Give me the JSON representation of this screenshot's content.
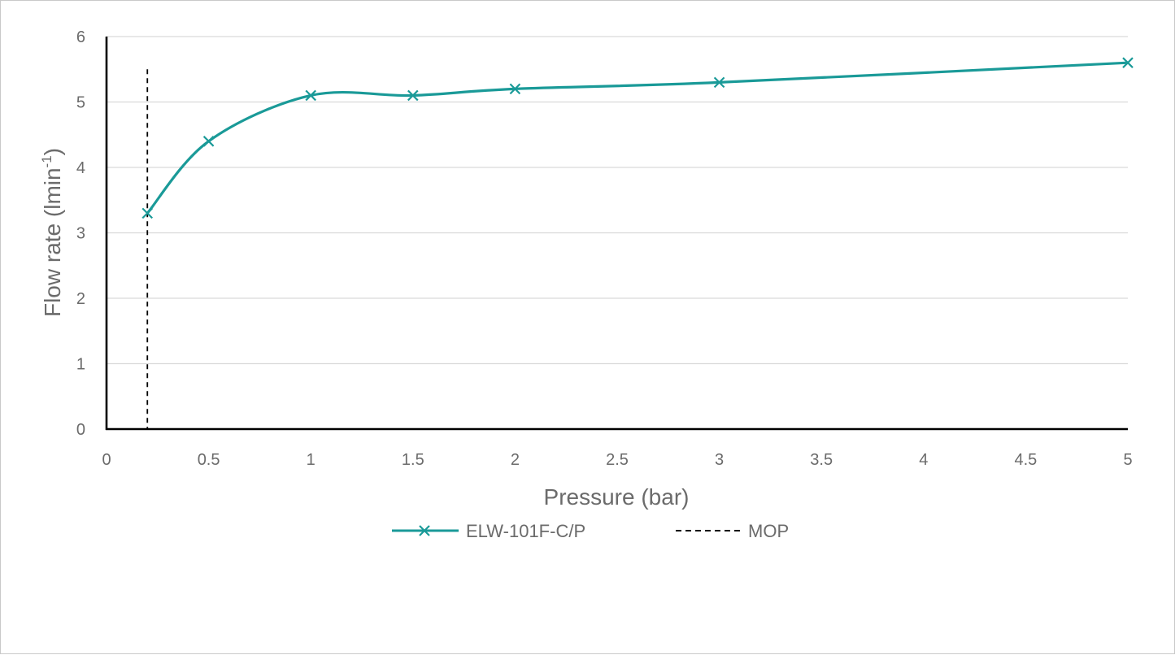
{
  "chart_data": {
    "type": "line",
    "title": "",
    "xlabel": "Pressure (bar)",
    "ylabel_main": "Flow rate (lmin",
    "ylabel_sup": "-1",
    "ylabel_close": ")",
    "xlim": [
      0,
      5
    ],
    "ylim": [
      0,
      6
    ],
    "x_ticks": [
      "0",
      "0.5",
      "1",
      "1.5",
      "2",
      "2.5",
      "3",
      "3.5",
      "4",
      "4.5",
      "5"
    ],
    "y_ticks": [
      "0",
      "1",
      "2",
      "3",
      "4",
      "5",
      "6"
    ],
    "grid": true,
    "legend_position": "bottom",
    "series": [
      {
        "name": "ELW-101F-C/P",
        "color": "#1a9a98",
        "marker": "x",
        "smooth": true,
        "x": [
          0.2,
          0.5,
          1,
          1.5,
          2,
          3,
          5
        ],
        "y": [
          3.3,
          4.4,
          5.1,
          5.1,
          5.2,
          5.3,
          5.6
        ]
      }
    ],
    "reference_lines": [
      {
        "name": "MOP",
        "color": "#000000",
        "style": "dashed",
        "x": 0.2,
        "y_range": [
          0,
          5.5
        ]
      }
    ]
  }
}
